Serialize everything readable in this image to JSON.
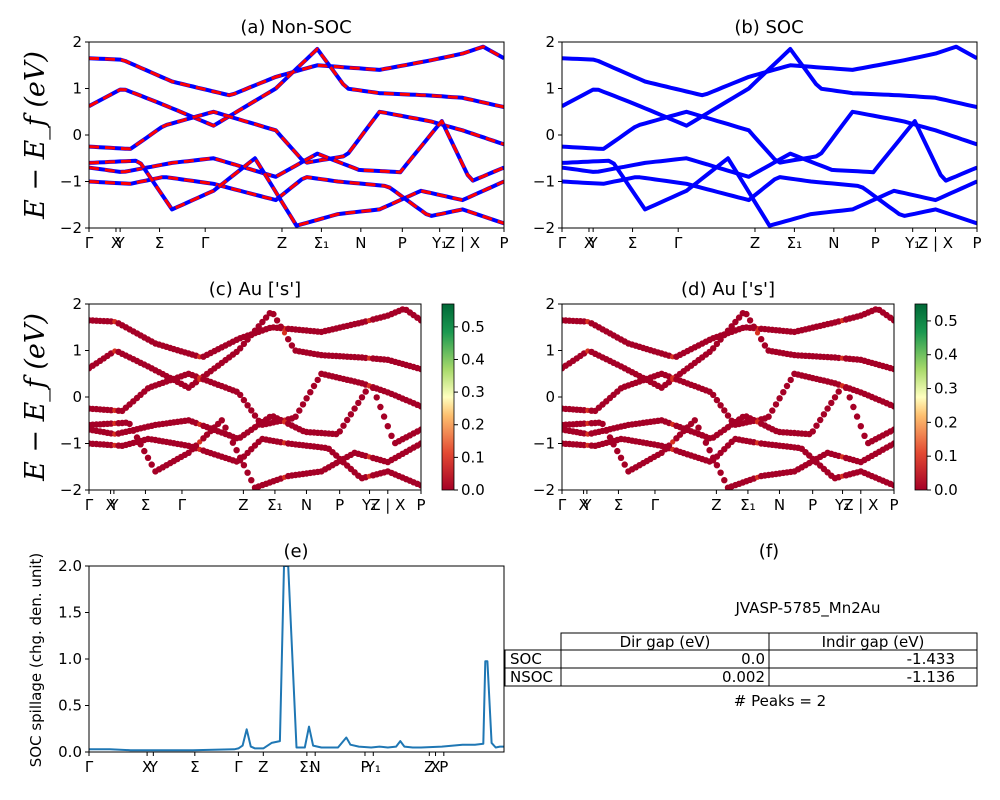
{
  "chart_data": [
    {
      "id": "a",
      "type": "line",
      "title": "(a) Non-SOC",
      "ylabel": "E − E_f (eV)",
      "ylim": [
        -2,
        2
      ],
      "yticks": [
        "−2",
        "−1",
        "0",
        "1",
        "2"
      ],
      "kpath_labels": [
        "Γ",
        "X",
        "Y",
        "Σ",
        "Γ",
        "Z",
        "Σ₁",
        "N",
        "P",
        "Y₁",
        "Z | X",
        "P"
      ],
      "series": [
        {
          "color": "#0000ff",
          "style": "solid"
        },
        {
          "color": "#ff0000",
          "style": "dashed"
        }
      ],
      "bands": [
        {
          "x": [
            0,
            0.08,
            0.2,
            0.34,
            0.45,
            0.55,
            0.7,
            0.82,
            0.9,
            0.95,
            1
          ],
          "y": [
            1.65,
            1.62,
            1.15,
            0.85,
            1.25,
            1.5,
            1.4,
            1.6,
            1.75,
            1.9,
            1.65
          ]
        },
        {
          "x": [
            0,
            0.08,
            0.18,
            0.3,
            0.45,
            0.55,
            0.62,
            0.7,
            0.82,
            0.9,
            1
          ],
          "y": [
            0.62,
            1.0,
            0.65,
            0.2,
            1.0,
            1.85,
            1.0,
            0.9,
            0.85,
            0.8,
            0.6
          ]
        },
        {
          "x": [
            0,
            0.1,
            0.18,
            0.3,
            0.45,
            0.52,
            0.62,
            0.7,
            0.82,
            0.9,
            1
          ],
          "y": [
            -0.25,
            -0.3,
            0.2,
            0.5,
            0.1,
            -0.6,
            -0.45,
            0.5,
            0.3,
            0.1,
            -0.2
          ]
        },
        {
          "x": [
            0,
            0.08,
            0.2,
            0.3,
            0.45,
            0.55,
            0.65,
            0.75,
            0.85,
            0.92,
            1
          ],
          "y": [
            -0.7,
            -0.8,
            -0.6,
            -0.5,
            -0.9,
            -0.4,
            -0.75,
            -0.8,
            0.3,
            -1.0,
            -0.7
          ]
        },
        {
          "x": [
            0,
            0.1,
            0.18,
            0.3,
            0.45,
            0.52,
            0.6,
            0.72,
            0.82,
            0.9,
            1
          ],
          "y": [
            -1.0,
            -1.05,
            -0.9,
            -1.05,
            -1.4,
            -0.9,
            -1.0,
            -1.1,
            -1.75,
            -1.6,
            -1.9
          ]
        },
        {
          "x": [
            0,
            0.12,
            0.2,
            0.3,
            0.4,
            0.5,
            0.6,
            0.7,
            0.8,
            0.9,
            1
          ],
          "y": [
            -0.6,
            -0.55,
            -1.6,
            -1.2,
            -0.5,
            -1.95,
            -1.7,
            -1.6,
            -1.2,
            -1.4,
            -1.0
          ]
        }
      ]
    },
    {
      "id": "b",
      "type": "line",
      "title": "(b) SOC",
      "ylim": [
        -2,
        2
      ],
      "yticks": [
        "−2",
        "−1",
        "0",
        "1",
        "2"
      ],
      "kpath_labels": [
        "Γ",
        "X",
        "Y",
        "Σ",
        "Γ",
        "Z",
        "Σ₁",
        "N",
        "P",
        "Y₁",
        "Z | X",
        "P"
      ],
      "series": [
        {
          "color": "#0000ff",
          "style": "solid"
        }
      ],
      "bands": [
        {
          "x": [
            0,
            0.08,
            0.2,
            0.34,
            0.45,
            0.55,
            0.7,
            0.82,
            0.9,
            0.95,
            1
          ],
          "y": [
            1.65,
            1.62,
            1.15,
            0.85,
            1.25,
            1.5,
            1.4,
            1.6,
            1.75,
            1.9,
            1.65
          ]
        },
        {
          "x": [
            0,
            0.08,
            0.18,
            0.3,
            0.45,
            0.55,
            0.62,
            0.7,
            0.82,
            0.9,
            1
          ],
          "y": [
            0.62,
            1.0,
            0.65,
            0.2,
            1.0,
            1.85,
            1.0,
            0.9,
            0.85,
            0.8,
            0.6
          ]
        },
        {
          "x": [
            0,
            0.1,
            0.18,
            0.3,
            0.45,
            0.52,
            0.62,
            0.7,
            0.82,
            0.9,
            1
          ],
          "y": [
            -0.25,
            -0.3,
            0.2,
            0.5,
            0.1,
            -0.6,
            -0.45,
            0.5,
            0.3,
            0.1,
            -0.2
          ]
        },
        {
          "x": [
            0,
            0.08,
            0.2,
            0.3,
            0.45,
            0.55,
            0.65,
            0.75,
            0.85,
            0.92,
            1
          ],
          "y": [
            -0.7,
            -0.8,
            -0.6,
            -0.5,
            -0.9,
            -0.4,
            -0.75,
            -0.8,
            0.3,
            -1.0,
            -0.7
          ]
        },
        {
          "x": [
            0,
            0.1,
            0.18,
            0.3,
            0.45,
            0.52,
            0.6,
            0.72,
            0.82,
            0.9,
            1
          ],
          "y": [
            -1.0,
            -1.05,
            -0.9,
            -1.05,
            -1.4,
            -0.9,
            -1.0,
            -1.1,
            -1.75,
            -1.6,
            -1.9
          ]
        },
        {
          "x": [
            0,
            0.12,
            0.2,
            0.3,
            0.4,
            0.5,
            0.6,
            0.7,
            0.8,
            0.9,
            1
          ],
          "y": [
            -0.6,
            -0.55,
            -1.6,
            -1.2,
            -0.5,
            -1.95,
            -1.7,
            -1.6,
            -1.2,
            -1.4,
            -1.0
          ]
        }
      ]
    },
    {
      "id": "c",
      "type": "scatter",
      "title": "(c)  Au ['s']",
      "ylabel": "E − E_f (eV)",
      "ylim": [
        -2,
        2
      ],
      "yticks": [
        "−2",
        "−1",
        "0",
        "1",
        "2"
      ],
      "kpath_labels": [
        "Γ",
        "X",
        "Y",
        "Σ",
        "Γ",
        "Z",
        "Σ₁",
        "N",
        "P",
        "Y₁",
        "Z | X",
        "P"
      ],
      "colorbar": {
        "min": 0.0,
        "max": 0.57,
        "ticks": [
          "0.0",
          "0.1",
          "0.2",
          "0.3",
          "0.4",
          "0.5"
        ],
        "colormap": "RdYlGn"
      },
      "bands": [
        {
          "x": [
            0,
            0.08,
            0.2,
            0.34,
            0.45,
            0.55,
            0.7,
            0.82,
            0.9,
            0.95,
            1
          ],
          "y": [
            1.65,
            1.62,
            1.15,
            0.85,
            1.25,
            1.5,
            1.4,
            1.6,
            1.75,
            1.9,
            1.65
          ]
        },
        {
          "x": [
            0,
            0.08,
            0.18,
            0.3,
            0.45,
            0.55,
            0.62,
            0.7,
            0.82,
            0.9,
            1
          ],
          "y": [
            0.62,
            1.0,
            0.65,
            0.2,
            1.0,
            1.85,
            1.0,
            0.9,
            0.85,
            0.8,
            0.6
          ]
        },
        {
          "x": [
            0,
            0.1,
            0.18,
            0.3,
            0.45,
            0.52,
            0.62,
            0.7,
            0.82,
            0.9,
            1
          ],
          "y": [
            -0.25,
            -0.3,
            0.2,
            0.5,
            0.1,
            -0.6,
            -0.45,
            0.5,
            0.3,
            0.1,
            -0.2
          ]
        },
        {
          "x": [
            0,
            0.08,
            0.2,
            0.3,
            0.45,
            0.55,
            0.65,
            0.75,
            0.85,
            0.92,
            1
          ],
          "y": [
            -0.7,
            -0.8,
            -0.6,
            -0.5,
            -0.9,
            -0.4,
            -0.75,
            -0.8,
            0.3,
            -1.0,
            -0.7
          ]
        },
        {
          "x": [
            0,
            0.1,
            0.18,
            0.3,
            0.45,
            0.52,
            0.6,
            0.72,
            0.82,
            0.9,
            1
          ],
          "y": [
            -1.0,
            -1.05,
            -0.9,
            -1.05,
            -1.4,
            -0.9,
            -1.0,
            -1.1,
            -1.75,
            -1.6,
            -1.9
          ]
        },
        {
          "x": [
            0,
            0.12,
            0.2,
            0.3,
            0.4,
            0.5,
            0.6,
            0.7,
            0.8,
            0.9,
            1
          ],
          "y": [
            -0.6,
            -0.55,
            -1.6,
            -1.2,
            -0.5,
            -1.95,
            -1.7,
            -1.6,
            -1.2,
            -1.4,
            -1.0
          ]
        }
      ]
    },
    {
      "id": "d",
      "type": "scatter",
      "title": "(d) Au ['s']",
      "ylim": [
        -2,
        2
      ],
      "yticks": [
        "−2",
        "−1",
        "0",
        "1",
        "2"
      ],
      "kpath_labels": [
        "Γ",
        "X",
        "Y",
        "Σ",
        "Γ",
        "Z",
        "Σ₁",
        "N",
        "P",
        "Y₁",
        "Z | X",
        "P"
      ],
      "colorbar": {
        "min": 0.0,
        "max": 0.55,
        "ticks": [
          "0.0",
          "0.1",
          "0.2",
          "0.3",
          "0.4",
          "0.5"
        ],
        "colormap": "RdYlGn"
      },
      "bands": [
        {
          "x": [
            0,
            0.08,
            0.2,
            0.34,
            0.45,
            0.55,
            0.7,
            0.82,
            0.9,
            0.95,
            1
          ],
          "y": [
            1.65,
            1.62,
            1.15,
            0.85,
            1.25,
            1.5,
            1.4,
            1.6,
            1.75,
            1.9,
            1.65
          ]
        },
        {
          "x": [
            0,
            0.08,
            0.18,
            0.3,
            0.45,
            0.55,
            0.62,
            0.7,
            0.82,
            0.9,
            1
          ],
          "y": [
            0.62,
            1.0,
            0.65,
            0.2,
            1.0,
            1.85,
            1.0,
            0.9,
            0.85,
            0.8,
            0.6
          ]
        },
        {
          "x": [
            0,
            0.1,
            0.18,
            0.3,
            0.45,
            0.52,
            0.62,
            0.7,
            0.82,
            0.9,
            1
          ],
          "y": [
            -0.25,
            -0.3,
            0.2,
            0.5,
            0.1,
            -0.6,
            -0.45,
            0.5,
            0.3,
            0.1,
            -0.2
          ]
        },
        {
          "x": [
            0,
            0.08,
            0.2,
            0.3,
            0.45,
            0.55,
            0.65,
            0.75,
            0.85,
            0.92,
            1
          ],
          "y": [
            -0.7,
            -0.8,
            -0.6,
            -0.5,
            -0.9,
            -0.4,
            -0.75,
            -0.8,
            0.3,
            -1.0,
            -0.7
          ]
        },
        {
          "x": [
            0,
            0.1,
            0.18,
            0.3,
            0.45,
            0.52,
            0.6,
            0.72,
            0.82,
            0.9,
            1
          ],
          "y": [
            -1.0,
            -1.05,
            -0.9,
            -1.05,
            -1.4,
            -0.9,
            -1.0,
            -1.1,
            -1.75,
            -1.6,
            -1.9
          ]
        },
        {
          "x": [
            0,
            0.12,
            0.2,
            0.3,
            0.4,
            0.5,
            0.6,
            0.7,
            0.8,
            0.9,
            1
          ],
          "y": [
            -0.6,
            -0.55,
            -1.6,
            -1.2,
            -0.5,
            -1.95,
            -1.7,
            -1.6,
            -1.2,
            -1.4,
            -1.0
          ]
        }
      ]
    },
    {
      "id": "e",
      "type": "line",
      "title": "(e)",
      "ylabel": "SOC spillage (chg. den. unit)",
      "ylim": [
        0,
        2.05
      ],
      "yticks": [
        "0.0",
        "0.5",
        "1.0",
        "1.5",
        "2.0"
      ],
      "kpath_labels": [
        "Γ",
        "X",
        "Y",
        "Σ",
        "Γ",
        "Z",
        "Σ₁",
        "N",
        "P",
        "Y₁",
        "Z",
        "X",
        "P"
      ],
      "series": [
        {
          "color": "#1f77b4"
        }
      ],
      "x": [
        0,
        0.05,
        0.1,
        0.15,
        0.2,
        0.25,
        0.3,
        0.35,
        0.36,
        0.37,
        0.38,
        0.39,
        0.4,
        0.42,
        0.44,
        0.46,
        0.47,
        0.48,
        0.5,
        0.52,
        0.53,
        0.54,
        0.56,
        0.6,
        0.62,
        0.625,
        0.63,
        0.65,
        0.68,
        0.7,
        0.72,
        0.74,
        0.75,
        0.76,
        0.78,
        0.8,
        0.85,
        0.9,
        0.93,
        0.95,
        0.955,
        0.96,
        0.97,
        0.98,
        0.99,
        1
      ],
      "y": [
        0.03,
        0.03,
        0.02,
        0.02,
        0.02,
        0.02,
        0.025,
        0.03,
        0.04,
        0.07,
        0.25,
        0.06,
        0.04,
        0.04,
        0.1,
        0.12,
        2.05,
        2.05,
        0.05,
        0.05,
        0.28,
        0.07,
        0.05,
        0.05,
        0.16,
        0.12,
        0.08,
        0.06,
        0.05,
        0.06,
        0.05,
        0.06,
        0.12,
        0.06,
        0.05,
        0.05,
        0.06,
        0.08,
        0.08,
        0.09,
        1.0,
        1.0,
        0.1,
        0.05,
        0.06,
        0.06
      ]
    }
  ],
  "panel_f": {
    "title": "(f)",
    "material": "JVASP-5785_Mn2Au",
    "table": {
      "headers": [
        "",
        "Dir gap (eV)",
        "Indir gap (eV)"
      ],
      "rows": [
        [
          "SOC",
          "0.0",
          "-1.433"
        ],
        [
          "NSOC",
          "0.002",
          "-1.136"
        ]
      ]
    },
    "peaks_text": "# Peaks = 2"
  }
}
